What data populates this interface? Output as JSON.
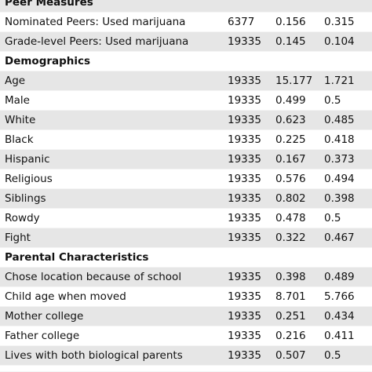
{
  "table": {
    "groups": [
      {
        "header": "Peer Measures",
        "rows": [
          {
            "label": "Nominated Peers: Used marijuana",
            "n": "6377",
            "mean": "0.156",
            "sd": "0.315"
          },
          {
            "label": "Grade-level Peers: Used marijuana",
            "n": "19335",
            "mean": "0.145",
            "sd": "0.104"
          }
        ]
      },
      {
        "header": "Demographics",
        "rows": [
          {
            "label": "Age",
            "n": "19335",
            "mean": "15.177",
            "sd": "1.721"
          },
          {
            "label": "Male",
            "n": "19335",
            "mean": "0.499",
            "sd": "0.5"
          },
          {
            "label": "White",
            "n": "19335",
            "mean": "0.623",
            "sd": "0.485"
          },
          {
            "label": "Black",
            "n": "19335",
            "mean": "0.225",
            "sd": "0.418"
          },
          {
            "label": "Hispanic",
            "n": "19335",
            "mean": "0.167",
            "sd": "0.373"
          },
          {
            "label": "Religious",
            "n": "19335",
            "mean": "0.576",
            "sd": "0.494"
          },
          {
            "label": "Siblings",
            "n": "19335",
            "mean": "0.802",
            "sd": "0.398"
          },
          {
            "label": "Rowdy",
            "n": "19335",
            "mean": "0.478",
            "sd": "0.5"
          },
          {
            "label": "Fight",
            "n": "19335",
            "mean": "0.322",
            "sd": "0.467"
          }
        ]
      },
      {
        "header": "Parental Characteristics",
        "rows": [
          {
            "label": "Chose location because of school",
            "n": "19335",
            "mean": "0.398",
            "sd": "0.489"
          },
          {
            "label": "Child age when moved",
            "n": "19335",
            "mean": "8.701",
            "sd": "5.766"
          },
          {
            "label": "Mother college",
            "n": "19335",
            "mean": "0.251",
            "sd": "0.434"
          },
          {
            "label": "Father college",
            "n": "19335",
            "mean": "0.216",
            "sd": "0.411"
          },
          {
            "label": "Lives with both biological parents",
            "n": "19335",
            "mean": "0.507",
            "sd": "0.5"
          }
        ]
      }
    ]
  }
}
